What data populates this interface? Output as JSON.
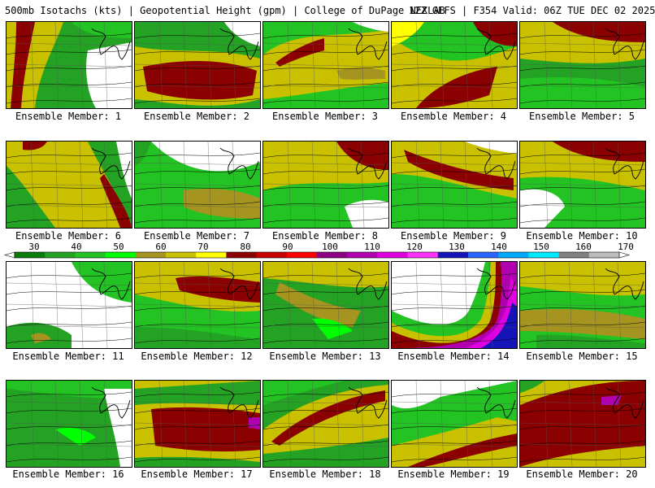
{
  "header": {
    "left": "500mb Isotachs (kts) | Geopotential Height (gpm) | College of DuPage NEXLAB",
    "right": "12Z GEFS | F354 Valid: 06Z TUE DEC 02 2025"
  },
  "legend": {
    "labels": [
      "30",
      "40",
      "50",
      "60",
      "70",
      "80",
      "90",
      "100",
      "110",
      "120",
      "130",
      "140",
      "150",
      "160",
      "170"
    ],
    "colors": [
      "#0a7a0a",
      "#24a224",
      "#22c322",
      "#00ff00",
      "#a59520",
      "#c9c000",
      "#ffff00",
      "#8b0000",
      "#c80000",
      "#ff0000",
      "#8c0083",
      "#b000b0",
      "#e000e0",
      "#ff32ff",
      "#1414b8",
      "#2a64ff",
      "#00a8ff",
      "#00eaff",
      "#808080",
      "#bcbcbc"
    ]
  },
  "members": [
    {
      "label": "Ensemble Member: 1"
    },
    {
      "label": "Ensemble Member: 2"
    },
    {
      "label": "Ensemble Member: 3"
    },
    {
      "label": "Ensemble Member: 4"
    },
    {
      "label": "Ensemble Member: 5"
    },
    {
      "label": "Ensemble Member: 6"
    },
    {
      "label": "Ensemble Member: 7"
    },
    {
      "label": "Ensemble Member: 8"
    },
    {
      "label": "Ensemble Member: 9"
    },
    {
      "label": "Ensemble Member: 10"
    },
    {
      "label": "Ensemble Member: 11"
    },
    {
      "label": "Ensemble Member: 12"
    },
    {
      "label": "Ensemble Member: 13"
    },
    {
      "label": "Ensemble Member: 14"
    },
    {
      "label": "Ensemble Member: 15"
    },
    {
      "label": "Ensemble Member: 16"
    },
    {
      "label": "Ensemble Member: 17"
    },
    {
      "label": "Ensemble Member: 18"
    },
    {
      "label": "Ensemble Member: 19"
    },
    {
      "label": "Ensemble Member: 20"
    }
  ]
}
